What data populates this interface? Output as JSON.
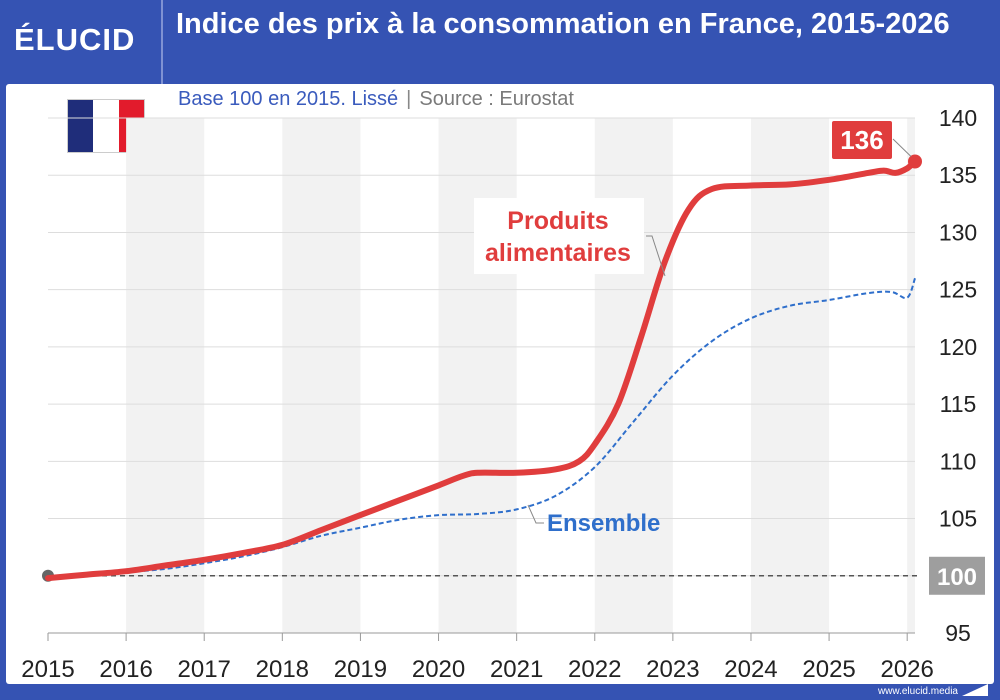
{
  "brand": {
    "logo": "ÉLUCID",
    "url": "www.elucid.media"
  },
  "title": "Indice des prix à la consommation en France, 2015-2026",
  "subtitle": "Base 100 en 2015. Lissé",
  "subtitle_separator": "|",
  "source": "Source : Eurostat",
  "colors": {
    "frame": "#3553b3",
    "food": "#e03d3d",
    "overall": "#2f6fcb",
    "baseline": "#555555",
    "band": "#f2f2f2"
  },
  "chart_data": {
    "type": "line",
    "title": "Indice des prix à la consommation en France, 2015-2026",
    "xlabel": "",
    "ylabel": "",
    "xlim": [
      2015,
      2026.1
    ],
    "ylim": [
      95,
      140
    ],
    "xticks": [
      "2015",
      "2016",
      "2017",
      "2018",
      "2019",
      "2020",
      "2021",
      "2022",
      "2023",
      "2024",
      "2025",
      "2026"
    ],
    "yticks": [
      "95",
      "100",
      "105",
      "110",
      "115",
      "120",
      "125",
      "130",
      "135",
      "140"
    ],
    "reference_line": {
      "y": 100,
      "label": "100"
    },
    "grid": "horizontal",
    "alternating_year_bands": true,
    "series": [
      {
        "name": "Produits alimentaires",
        "label_lines": [
          "Produits",
          "alimentaires"
        ],
        "style": "solid",
        "end_label": "136",
        "points": [
          [
            2015,
            99.8
          ],
          [
            2015.5,
            100.1
          ],
          [
            2016,
            100.4
          ],
          [
            2016.5,
            100.9
          ],
          [
            2017,
            101.4
          ],
          [
            2017.5,
            102
          ],
          [
            2018,
            102.7
          ],
          [
            2018.5,
            104
          ],
          [
            2019,
            105.3
          ],
          [
            2019.5,
            106.6
          ],
          [
            2020,
            107.9
          ],
          [
            2020.3,
            108.7
          ],
          [
            2020.5,
            109
          ],
          [
            2021,
            109
          ],
          [
            2021.5,
            109.3
          ],
          [
            2021.8,
            110
          ],
          [
            2022,
            111.5
          ],
          [
            2022.3,
            115
          ],
          [
            2022.6,
            121
          ],
          [
            2022.9,
            127.5
          ],
          [
            2023.2,
            132
          ],
          [
            2023.5,
            133.8
          ],
          [
            2024,
            134.1
          ],
          [
            2024.5,
            134.2
          ],
          [
            2025,
            134.6
          ],
          [
            2025.5,
            135.2
          ],
          [
            2025.7,
            135.4
          ],
          [
            2025.85,
            135.2
          ],
          [
            2026,
            135.6
          ],
          [
            2026.1,
            136.2
          ]
        ]
      },
      {
        "name": "Ensemble",
        "label_lines": [
          "Ensemble"
        ],
        "style": "dashed",
        "points": [
          [
            2015,
            99.9
          ],
          [
            2015.5,
            100
          ],
          [
            2016,
            100.3
          ],
          [
            2016.5,
            100.6
          ],
          [
            2017,
            101.1
          ],
          [
            2017.5,
            101.7
          ],
          [
            2018,
            102.5
          ],
          [
            2018.5,
            103.5
          ],
          [
            2019,
            104.2
          ],
          [
            2019.5,
            104.9
          ],
          [
            2020,
            105.3
          ],
          [
            2020.5,
            105.4
          ],
          [
            2021,
            105.8
          ],
          [
            2021.5,
            107
          ],
          [
            2022,
            109.5
          ],
          [
            2022.5,
            113.5
          ],
          [
            2023,
            117.5
          ],
          [
            2023.5,
            120.5
          ],
          [
            2024,
            122.5
          ],
          [
            2024.5,
            123.6
          ],
          [
            2025,
            124.1
          ],
          [
            2025.5,
            124.7
          ],
          [
            2025.8,
            124.8
          ],
          [
            2026,
            124.3
          ],
          [
            2026.1,
            126
          ]
        ]
      }
    ]
  }
}
